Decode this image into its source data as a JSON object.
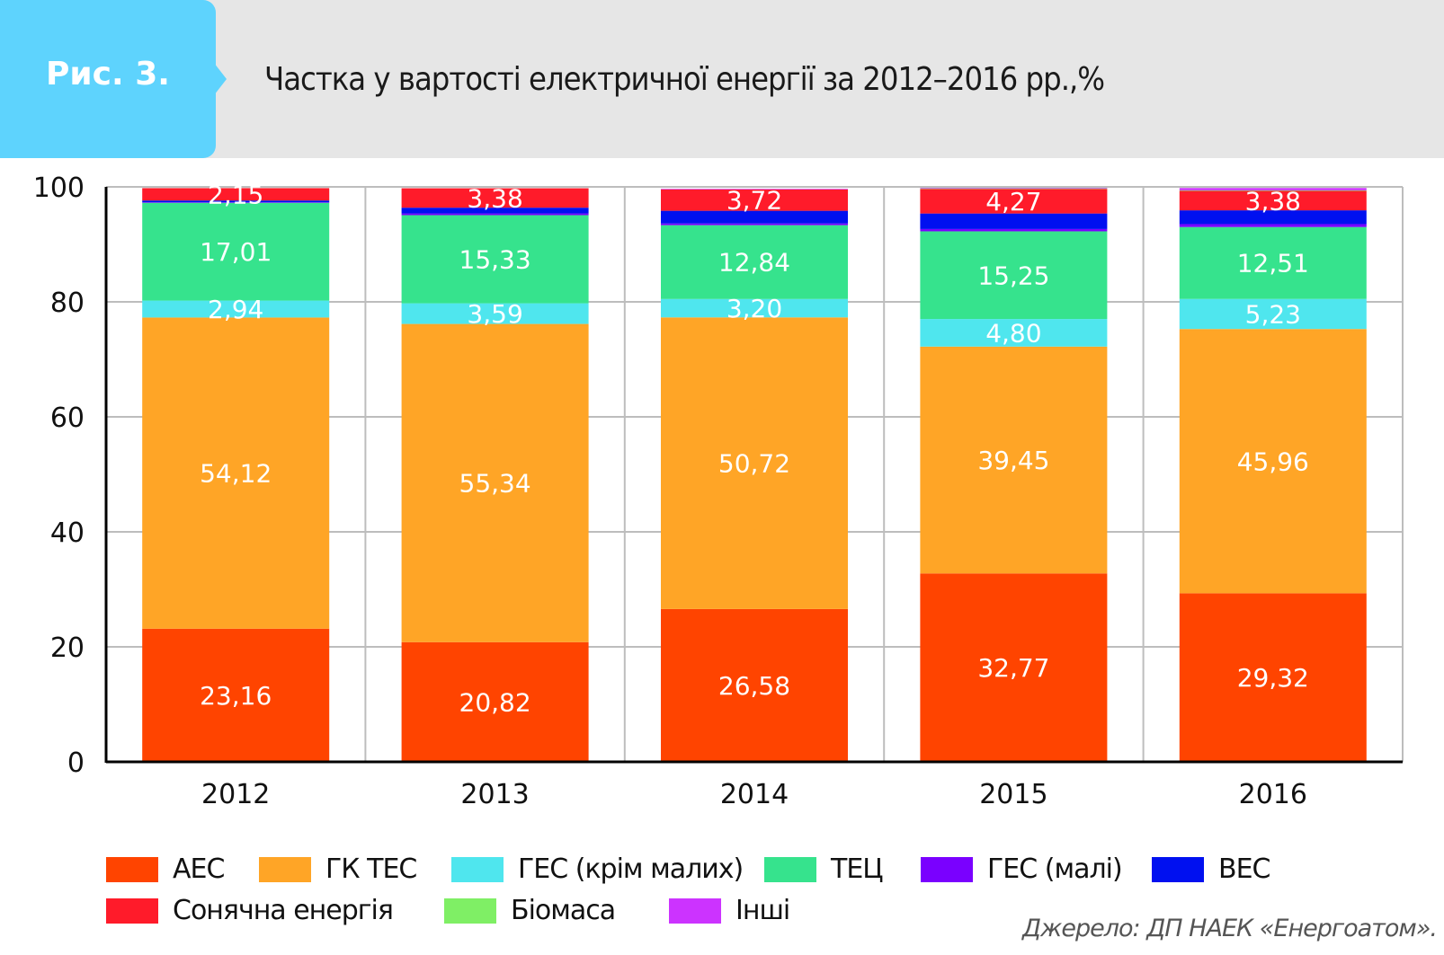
{
  "header": {
    "figure_label": "Рис. 3.",
    "title": "Частка у вартості електричної енергії за 2012–2016 рр.,%"
  },
  "source": "Джерело: ДП НАЕК «Енергоатом».",
  "chart_data": {
    "type": "bar",
    "stacked": true,
    "title": "Частка у вартості електричної енергії за 2012–2016 рр.,%",
    "xlabel": "",
    "ylabel": "",
    "ylim": [
      0,
      100
    ],
    "yticks": [
      "0",
      "20",
      "40",
      "60",
      "80",
      "100"
    ],
    "ytick_values": [
      0,
      20,
      40,
      60,
      80,
      100
    ],
    "grid": true,
    "legend_position": "bottom",
    "categories": [
      "2012",
      "2013",
      "2014",
      "2015",
      "2016"
    ],
    "series": [
      {
        "name": "АЕС",
        "color": "#ff4400",
        "values": [
          23.16,
          20.82,
          26.58,
          32.77,
          29.32
        ],
        "labels": [
          "23,16",
          "20,82",
          "26,58",
          "32,77",
          "29,32"
        ]
      },
      {
        "name": "ГК ТЕС",
        "color": "#ffa526",
        "values": [
          54.12,
          55.34,
          50.72,
          39.45,
          45.96
        ],
        "labels": [
          "54,12",
          "55,34",
          "50,72",
          "39,45",
          "45,96"
        ]
      },
      {
        "name": "ГЕС (крім малих)",
        "color": "#4fe6ee",
        "values": [
          2.94,
          3.59,
          3.2,
          4.8,
          5.23
        ],
        "labels": [
          "2,94",
          "3,59",
          "3,20",
          "4,80",
          "5,23"
        ]
      },
      {
        "name": "ТЕЦ",
        "color": "#36e38d",
        "values": [
          17.01,
          15.33,
          12.84,
          15.25,
          12.51
        ],
        "labels": [
          "17,01",
          "15,33",
          "12,84",
          "15,25",
          "12,51"
        ]
      },
      {
        "name": "ГЕС (малі)",
        "color": "#7a00ff",
        "values": [
          0.1,
          0.3,
          0.3,
          0.4,
          0.5
        ],
        "labels": [
          "",
          "",
          "",
          "",
          ""
        ]
      },
      {
        "name": "ВЕС",
        "color": "#0010f0",
        "values": [
          0.3,
          1.0,
          2.2,
          2.7,
          2.4
        ],
        "labels": [
          "",
          "",
          "",
          "",
          ""
        ]
      },
      {
        "name": "Сонячна енергія",
        "color": "#ff1b2a",
        "values": [
          2.15,
          3.38,
          3.72,
          4.27,
          3.38
        ],
        "labels": [
          "2,15",
          "3,38",
          "3,72",
          "4,27",
          "3,38"
        ]
      },
      {
        "name": "Біомаса",
        "color": "#7fef65",
        "values": [
          0.0,
          0.0,
          0.0,
          0.1,
          0.1
        ],
        "labels": [
          "",
          "",
          "",
          "",
          ""
        ]
      },
      {
        "name": "Інші",
        "color": "#cc33ff",
        "values": [
          0.0,
          0.0,
          0.1,
          0.1,
          0.4
        ],
        "labels": [
          "",
          "",
          "",
          "",
          ""
        ]
      }
    ]
  }
}
